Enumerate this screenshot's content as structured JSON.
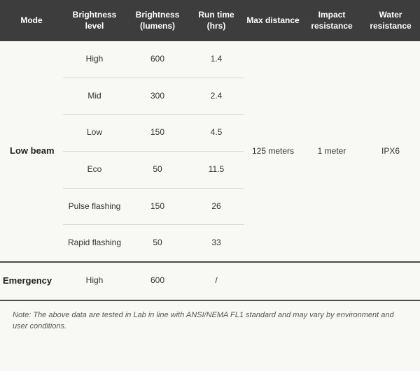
{
  "type": "table",
  "background_color": "#f8f8f5",
  "header_bg": "#3d3d3d",
  "header_fg": "#ffffff",
  "row_divider_color": "#d6d6d4",
  "mode_divider_color": "#4a4a4a",
  "text_color": "#333333",
  "mode_text_color": "#222222",
  "note_text_color": "#555555",
  "header_fontsize": 12,
  "body_fontsize": 12,
  "mode_fontsize": 13,
  "note_fontsize": 11,
  "column_widths_pct": [
    15,
    15,
    15,
    13,
    14,
    14,
    14
  ],
  "columns": [
    "Mode",
    "Brightness level",
    "Brightness (lumens)",
    "Run time (hrs)",
    "Max distance",
    "Impact resistance",
    "Water resistance"
  ],
  "modes": [
    {
      "name": "Low beam",
      "max_distance": "125 meters",
      "impact_resistance": "1 meter",
      "water_resistance": "IPX6",
      "rows": [
        {
          "brightness_level": "High",
          "lumens": "600",
          "runtime": "1.4"
        },
        {
          "brightness_level": "Mid",
          "lumens": "300",
          "runtime": "2.4"
        },
        {
          "brightness_level": "Low",
          "lumens": "150",
          "runtime": "4.5"
        },
        {
          "brightness_level": "Eco",
          "lumens": "50",
          "runtime": "11.5"
        },
        {
          "brightness_level": "Pulse flashing",
          "lumens": "150",
          "runtime": "26"
        },
        {
          "brightness_level": "Rapid flashing",
          "lumens": "50",
          "runtime": "33"
        }
      ]
    },
    {
      "name": "Emergency",
      "max_distance": "",
      "impact_resistance": "",
      "water_resistance": "",
      "rows": [
        {
          "brightness_level": "High",
          "lumens": "600",
          "runtime": "/"
        }
      ]
    }
  ],
  "note": "Note: The above data are tested in Lab in line with ANSI/NEMA FL1 standard and may vary by environment and user conditions."
}
